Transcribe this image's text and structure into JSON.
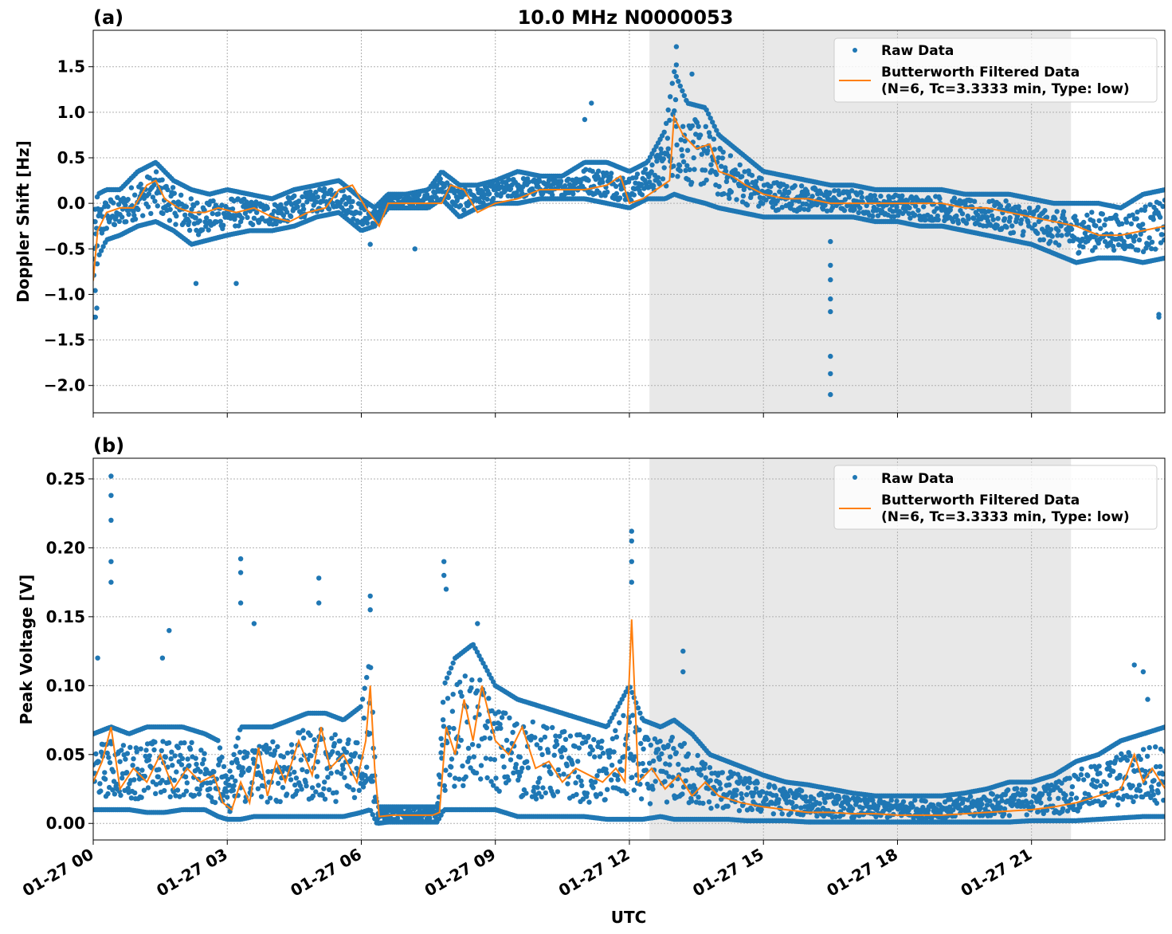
{
  "figure": {
    "title": "10.0 MHz N0000053",
    "xlabel": "UTC"
  },
  "chart_data": [
    {
      "type": "scatter",
      "panel_label": "(a)",
      "ylabel": "Doppler Shift [Hz]",
      "xlim": [
        "2024-01-27 00:00",
        "2024-01-27 23:59"
      ],
      "ylim": [
        -2.3,
        1.9
      ],
      "yticks": [
        1.5,
        1.0,
        0.5,
        0.0,
        -0.5,
        -1.0,
        -1.5,
        -2.0
      ],
      "ytick_labels": [
        "1.5",
        "1.0",
        "0.5",
        "0.0",
        "−0.5",
        "−1.0",
        "−1.5",
        "−2.0"
      ],
      "grid": true,
      "shaded_interval": [
        "2024-01-27 12:27",
        "2024-01-27 21:53"
      ],
      "legend": {
        "position": "top-right",
        "raw_label": "Raw Data",
        "filtered_label_line1": "Butterworth Filtered Data",
        "filtered_label_line2": "(N=6, Tc=3.3333 min, Type: low)"
      },
      "series": [
        {
          "name": "Raw Data",
          "kind": "points",
          "color": "#1f77b4",
          "band_hours": [
            0,
            0.1,
            0.3,
            0.6,
            1.0,
            1.4,
            1.8,
            2.2,
            2.6,
            3.0,
            3.5,
            4.0,
            4.5,
            5.0,
            5.5,
            6.0,
            6.3,
            6.6,
            7.0,
            7.5,
            7.8,
            8.2,
            8.6,
            9.0,
            9.5,
            10.0,
            10.5,
            11.0,
            11.5,
            12.0,
            12.4,
            12.8,
            13.0,
            13.3,
            13.7,
            14.0,
            14.5,
            15.0,
            15.5,
            16.0,
            16.5,
            17.0,
            17.5,
            18.0,
            18.5,
            19.0,
            19.5,
            20.0,
            20.5,
            21.0,
            21.5,
            22.0,
            22.5,
            23.0,
            23.5,
            23.99
          ],
          "band_low": [
            -1.25,
            -0.6,
            -0.4,
            -0.35,
            -0.25,
            -0.2,
            -0.3,
            -0.45,
            -0.4,
            -0.35,
            -0.3,
            -0.3,
            -0.25,
            -0.15,
            -0.1,
            -0.3,
            -0.25,
            -0.05,
            -0.05,
            -0.05,
            0.05,
            -0.15,
            -0.05,
            0.0,
            0.0,
            0.05,
            0.05,
            0.05,
            0.0,
            -0.05,
            0.05,
            0.05,
            0.1,
            0.05,
            0.0,
            -0.05,
            -0.1,
            -0.15,
            -0.15,
            -0.15,
            -0.15,
            -0.15,
            -0.2,
            -0.2,
            -0.25,
            -0.25,
            -0.3,
            -0.35,
            -0.4,
            -0.45,
            -0.55,
            -0.65,
            -0.6,
            -0.6,
            -0.65,
            -0.6
          ],
          "band_high": [
            -0.2,
            0.1,
            0.15,
            0.15,
            0.35,
            0.45,
            0.25,
            0.15,
            0.1,
            0.15,
            0.1,
            0.05,
            0.15,
            0.2,
            0.25,
            0.05,
            -0.05,
            0.1,
            0.1,
            0.15,
            0.35,
            0.2,
            0.2,
            0.25,
            0.35,
            0.3,
            0.3,
            0.45,
            0.45,
            0.35,
            0.45,
            0.8,
            1.45,
            1.1,
            1.05,
            0.75,
            0.55,
            0.35,
            0.3,
            0.25,
            0.2,
            0.2,
            0.15,
            0.15,
            0.15,
            0.15,
            0.1,
            0.1,
            0.1,
            0.05,
            0.0,
            0.0,
            0.0,
            -0.05,
            0.1,
            0.15
          ],
          "outliers": [
            {
              "x_hours": 0.05,
              "y": -1.25
            },
            {
              "x_hours": 0.08,
              "y": -1.15
            },
            {
              "x_hours": 2.3,
              "y": -0.88
            },
            {
              "x_hours": 3.2,
              "y": -0.88
            },
            {
              "x_hours": 6.2,
              "y": -0.45
            },
            {
              "x_hours": 7.2,
              "y": -0.5
            },
            {
              "x_hours": 11.15,
              "y": 1.1
            },
            {
              "x_hours": 11.0,
              "y": 0.92
            },
            {
              "x_hours": 13.05,
              "y": 1.72
            },
            {
              "x_hours": 13.05,
              "y": 1.52
            },
            {
              "x_hours": 13.4,
              "y": 1.42
            },
            {
              "x_hours": 16.5,
              "y": -0.42
            },
            {
              "x_hours": 16.5,
              "y": -0.68
            },
            {
              "x_hours": 16.5,
              "y": -0.84
            },
            {
              "x_hours": 16.5,
              "y": -1.05
            },
            {
              "x_hours": 16.5,
              "y": -1.19
            },
            {
              "x_hours": 16.5,
              "y": -1.68
            },
            {
              "x_hours": 16.5,
              "y": -1.87
            },
            {
              "x_hours": 16.5,
              "y": -2.1
            },
            {
              "x_hours": 23.85,
              "y": -1.25
            },
            {
              "x_hours": 23.85,
              "y": -1.22
            }
          ]
        },
        {
          "name": "Butterworth Filtered Data",
          "kind": "line",
          "color": "#ff7f0e",
          "x_hours": [
            0,
            0.1,
            0.3,
            0.6,
            0.9,
            1.2,
            1.4,
            1.6,
            1.9,
            2.2,
            2.5,
            2.8,
            3.2,
            3.6,
            4.0,
            4.4,
            4.8,
            5.2,
            5.5,
            5.8,
            6.1,
            6.4,
            6.6,
            7.0,
            7.5,
            7.8,
            8.0,
            8.3,
            8.6,
            9.0,
            9.5,
            10.0,
            10.5,
            11.0,
            11.5,
            11.8,
            12.0,
            12.3,
            12.6,
            12.9,
            13.0,
            13.2,
            13.5,
            13.8,
            14.0,
            14.3,
            14.6,
            15.0,
            15.5,
            16.0,
            16.5,
            17.0,
            17.5,
            18.0,
            18.5,
            19.0,
            19.5,
            20.0,
            20.5,
            21.0,
            21.5,
            22.0,
            22.5,
            23.0,
            23.5,
            23.99
          ],
          "y": [
            -0.85,
            -0.3,
            -0.1,
            -0.05,
            -0.05,
            0.2,
            0.25,
            0.05,
            -0.05,
            -0.1,
            -0.1,
            -0.05,
            -0.1,
            -0.05,
            -0.15,
            -0.2,
            -0.1,
            -0.05,
            0.15,
            0.2,
            -0.05,
            -0.25,
            0.0,
            0.0,
            0.0,
            0.0,
            0.2,
            0.15,
            -0.1,
            0.0,
            0.05,
            0.15,
            0.15,
            0.15,
            0.2,
            0.3,
            0.0,
            0.05,
            0.15,
            0.25,
            0.95,
            0.75,
            0.6,
            0.65,
            0.35,
            0.3,
            0.2,
            0.1,
            0.05,
            0.05,
            0.0,
            0.0,
            0.0,
            0.0,
            0.0,
            0.0,
            -0.05,
            -0.05,
            -0.1,
            -0.15,
            -0.2,
            -0.25,
            -0.35,
            -0.35,
            -0.3,
            -0.25
          ]
        }
      ]
    },
    {
      "type": "scatter",
      "panel_label": "(b)",
      "ylabel": "Peak Voltage [V]",
      "xlim": [
        "2024-01-27 00:00",
        "2024-01-27 23:59"
      ],
      "ylim": [
        -0.012,
        0.265
      ],
      "yticks": [
        0.25,
        0.2,
        0.15,
        0.1,
        0.05,
        0.0
      ],
      "ytick_labels": [
        "0.25",
        "0.20",
        "0.15",
        "0.10",
        "0.05",
        "0.00"
      ],
      "grid": true,
      "shaded_interval": [
        "2024-01-27 12:27",
        "2024-01-27 21:53"
      ],
      "legend": {
        "position": "top-right",
        "raw_label": "Raw Data",
        "filtered_label_line1": "Butterworth Filtered Data",
        "filtered_label_line2": "(N=6, Tc=3.3333 min, Type: low)"
      },
      "x_tick_labels": [
        "01-27 00",
        "01-27 03",
        "01-27 06",
        "01-27 09",
        "01-27 12",
        "01-27 15",
        "01-27 18",
        "01-27 21"
      ],
      "x_tick_hours": [
        0,
        3,
        6,
        9,
        12,
        15,
        18,
        21
      ],
      "series": [
        {
          "name": "Raw Data",
          "kind": "points",
          "color": "#1f77b4",
          "band_hours": [
            0,
            0.4,
            0.8,
            1.2,
            1.6,
            2.0,
            2.5,
            2.8,
            3.0,
            3.3,
            3.6,
            4.0,
            4.4,
            4.8,
            5.2,
            5.6,
            6.0,
            6.2,
            6.35,
            6.6,
            7.0,
            7.4,
            7.7,
            7.85,
            8.1,
            8.5,
            9.0,
            9.5,
            10.0,
            10.5,
            11.0,
            11.5,
            12.0,
            12.3,
            12.7,
            13.0,
            13.4,
            13.8,
            14.2,
            14.6,
            15.0,
            15.5,
            16.0,
            16.5,
            17.0,
            17.5,
            18.0,
            18.5,
            19.0,
            19.5,
            20.0,
            20.5,
            21.0,
            21.5,
            22.0,
            22.5,
            23.0,
            23.5,
            23.99
          ],
          "band_low": [
            0.01,
            0.01,
            0.01,
            0.008,
            0.008,
            0.01,
            0.01,
            0.005,
            0.003,
            0.003,
            0.005,
            0.005,
            0.005,
            0.005,
            0.005,
            0.005,
            0.008,
            0.01,
            0.0,
            0.001,
            0.001,
            0.001,
            0.001,
            0.01,
            0.01,
            0.01,
            0.01,
            0.005,
            0.005,
            0.005,
            0.005,
            0.003,
            0.003,
            0.003,
            0.005,
            0.003,
            0.003,
            0.003,
            0.003,
            0.002,
            0.002,
            0.002,
            0.001,
            0.001,
            0.001,
            0.001,
            0.001,
            0.001,
            0.001,
            0.001,
            0.001,
            0.001,
            0.002,
            0.002,
            0.002,
            0.003,
            0.004,
            0.005,
            0.005
          ],
          "band_high": [
            0.065,
            0.07,
            0.065,
            0.07,
            0.07,
            0.07,
            0.065,
            0.06,
            0.03,
            0.07,
            0.07,
            0.07,
            0.075,
            0.08,
            0.08,
            0.075,
            0.085,
            0.12,
            0.012,
            0.012,
            0.012,
            0.012,
            0.012,
            0.1,
            0.12,
            0.13,
            0.1,
            0.09,
            0.085,
            0.08,
            0.075,
            0.07,
            0.1,
            0.075,
            0.07,
            0.075,
            0.065,
            0.05,
            0.045,
            0.04,
            0.035,
            0.03,
            0.028,
            0.025,
            0.022,
            0.02,
            0.02,
            0.02,
            0.02,
            0.022,
            0.025,
            0.03,
            0.03,
            0.035,
            0.045,
            0.05,
            0.06,
            0.065,
            0.07
          ],
          "outliers": [
            {
              "x_hours": 0.4,
              "y": 0.252
            },
            {
              "x_hours": 0.4,
              "y": 0.238
            },
            {
              "x_hours": 0.4,
              "y": 0.22
            },
            {
              "x_hours": 0.4,
              "y": 0.19
            },
            {
              "x_hours": 0.4,
              "y": 0.175
            },
            {
              "x_hours": 0.1,
              "y": 0.12
            },
            {
              "x_hours": 1.7,
              "y": 0.14
            },
            {
              "x_hours": 1.55,
              "y": 0.12
            },
            {
              "x_hours": 3.3,
              "y": 0.192
            },
            {
              "x_hours": 3.3,
              "y": 0.182
            },
            {
              "x_hours": 3.3,
              "y": 0.16
            },
            {
              "x_hours": 3.6,
              "y": 0.145
            },
            {
              "x_hours": 5.05,
              "y": 0.178
            },
            {
              "x_hours": 5.05,
              "y": 0.16
            },
            {
              "x_hours": 6.2,
              "y": 0.165
            },
            {
              "x_hours": 6.2,
              "y": 0.155
            },
            {
              "x_hours": 7.85,
              "y": 0.19
            },
            {
              "x_hours": 7.85,
              "y": 0.18
            },
            {
              "x_hours": 7.9,
              "y": 0.17
            },
            {
              "x_hours": 8.6,
              "y": 0.145
            },
            {
              "x_hours": 12.05,
              "y": 0.212
            },
            {
              "x_hours": 12.05,
              "y": 0.205
            },
            {
              "x_hours": 12.05,
              "y": 0.19
            },
            {
              "x_hours": 12.05,
              "y": 0.175
            },
            {
              "x_hours": 13.2,
              "y": 0.125
            },
            {
              "x_hours": 13.2,
              "y": 0.11
            },
            {
              "x_hours": 23.3,
              "y": 0.115
            },
            {
              "x_hours": 23.5,
              "y": 0.11
            },
            {
              "x_hours": 23.6,
              "y": 0.09
            }
          ]
        },
        {
          "name": "Butterworth Filtered Data",
          "kind": "line",
          "color": "#ff7f0e",
          "x_hours": [
            0,
            0.2,
            0.4,
            0.6,
            0.9,
            1.2,
            1.5,
            1.8,
            2.1,
            2.4,
            2.7,
            2.9,
            3.1,
            3.3,
            3.5,
            3.7,
            3.9,
            4.1,
            4.3,
            4.6,
            4.9,
            5.1,
            5.3,
            5.6,
            5.9,
            6.1,
            6.2,
            6.3,
            6.4,
            6.7,
            7.0,
            7.3,
            7.6,
            7.75,
            7.9,
            8.1,
            8.3,
            8.5,
            8.7,
            9.0,
            9.3,
            9.6,
            9.9,
            10.2,
            10.5,
            10.8,
            11.1,
            11.4,
            11.7,
            11.9,
            12.05,
            12.2,
            12.5,
            12.8,
            13.1,
            13.4,
            13.7,
            14.0,
            14.5,
            15.0,
            15.5,
            16.0,
            16.5,
            17.0,
            17.5,
            18.0,
            18.5,
            19.0,
            19.5,
            20.0,
            20.5,
            21.0,
            21.5,
            22.0,
            22.5,
            23.0,
            23.3,
            23.5,
            23.7,
            23.99
          ],
          "y": [
            0.03,
            0.045,
            0.07,
            0.025,
            0.04,
            0.03,
            0.05,
            0.025,
            0.04,
            0.03,
            0.035,
            0.015,
            0.01,
            0.03,
            0.015,
            0.055,
            0.02,
            0.045,
            0.03,
            0.06,
            0.035,
            0.07,
            0.04,
            0.05,
            0.03,
            0.06,
            0.1,
            0.04,
            0.005,
            0.006,
            0.006,
            0.006,
            0.006,
            0.008,
            0.07,
            0.05,
            0.09,
            0.06,
            0.1,
            0.06,
            0.05,
            0.07,
            0.04,
            0.045,
            0.03,
            0.04,
            0.035,
            0.03,
            0.04,
            0.03,
            0.148,
            0.03,
            0.04,
            0.025,
            0.035,
            0.02,
            0.03,
            0.02,
            0.015,
            0.012,
            0.01,
            0.008,
            0.008,
            0.007,
            0.007,
            0.006,
            0.006,
            0.006,
            0.007,
            0.008,
            0.009,
            0.01,
            0.012,
            0.015,
            0.02,
            0.025,
            0.05,
            0.03,
            0.04,
            0.025
          ]
        }
      ]
    }
  ]
}
